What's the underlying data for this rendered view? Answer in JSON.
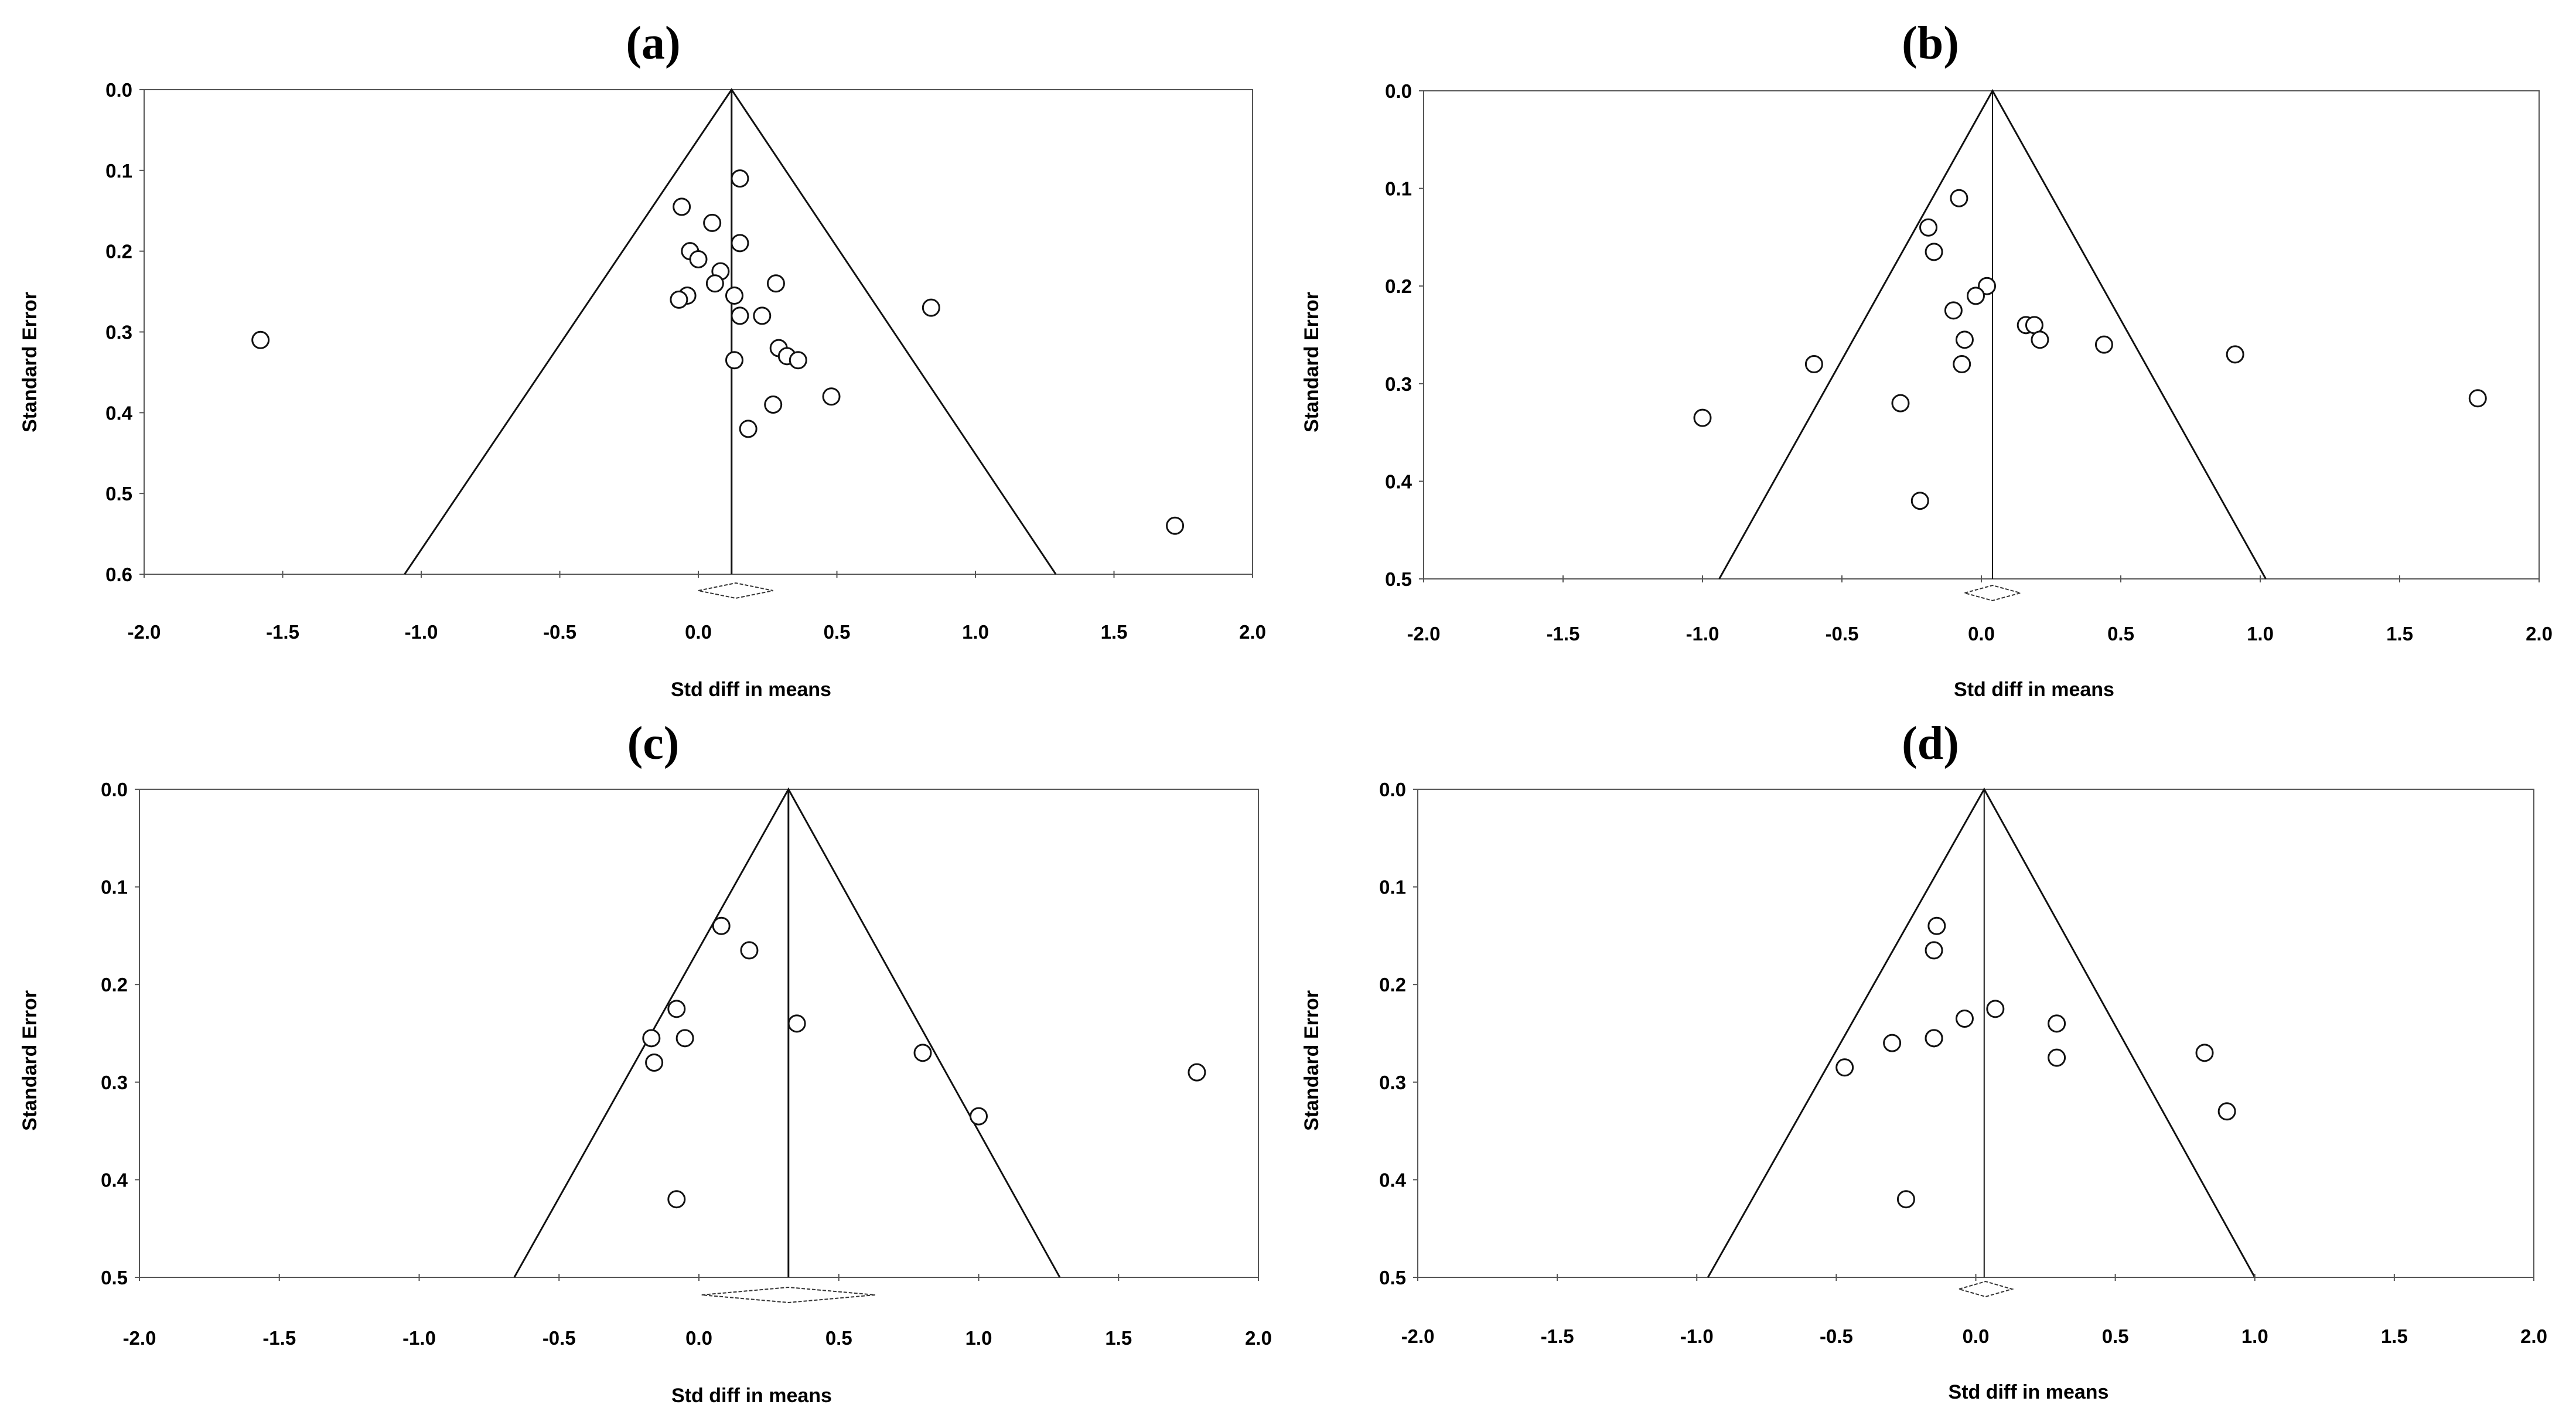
{
  "figure": {
    "panels": [
      "(a)",
      "(b)",
      "(c)",
      "(d)"
    ]
  },
  "chart_data": [
    {
      "type": "scatter",
      "subtype": "funnel plot",
      "title": "(a)",
      "xlabel": "Std diff in means",
      "ylabel": "Standard Error",
      "xlim": [
        -2.0,
        2.0
      ],
      "ylim": [
        0.0,
        0.6
      ],
      "y_inverted": true,
      "x_ticks": [
        "-2.0",
        "-1.5",
        "-1.0",
        "-0.5",
        "0.0",
        "0.5",
        "1.0",
        "1.5",
        "2.0"
      ],
      "y_ticks": [
        "0.0",
        "0.1",
        "0.2",
        "0.3",
        "0.4",
        "0.5",
        "0.6"
      ],
      "pooled_effect": 0.12,
      "funnel_base_x": [
        -1.06,
        1.29
      ],
      "summary_diamond": [
        0.0,
        0.27
      ],
      "points": [
        {
          "x": -1.58,
          "y": 0.31
        },
        {
          "x": 0.15,
          "y": 0.11
        },
        {
          "x": -0.06,
          "y": 0.145
        },
        {
          "x": 0.05,
          "y": 0.165
        },
        {
          "x": 0.15,
          "y": 0.19
        },
        {
          "x": -0.03,
          "y": 0.2
        },
        {
          "x": 0.0,
          "y": 0.21
        },
        {
          "x": 0.08,
          "y": 0.225
        },
        {
          "x": 0.06,
          "y": 0.24
        },
        {
          "x": 0.28,
          "y": 0.24
        },
        {
          "x": 0.13,
          "y": 0.255
        },
        {
          "x": -0.04,
          "y": 0.255
        },
        {
          "x": -0.07,
          "y": 0.26
        },
        {
          "x": 0.84,
          "y": 0.27
        },
        {
          "x": 0.15,
          "y": 0.28
        },
        {
          "x": 0.23,
          "y": 0.28
        },
        {
          "x": 0.29,
          "y": 0.32
        },
        {
          "x": 0.32,
          "y": 0.33
        },
        {
          "x": 0.36,
          "y": 0.335
        },
        {
          "x": 0.13,
          "y": 0.335
        },
        {
          "x": 0.48,
          "y": 0.38
        },
        {
          "x": 0.27,
          "y": 0.39
        },
        {
          "x": 0.18,
          "y": 0.42
        },
        {
          "x": 1.72,
          "y": 0.54
        }
      ]
    },
    {
      "type": "scatter",
      "subtype": "funnel plot",
      "title": "(b)",
      "xlabel": "Std diff in means",
      "ylabel": "Standard Error",
      "xlim": [
        -2.0,
        2.0
      ],
      "ylim": [
        0.0,
        0.5
      ],
      "y_inverted": true,
      "x_ticks": [
        "-2.0",
        "-1.5",
        "-1.0",
        "-0.5",
        "0.0",
        "0.5",
        "1.0",
        "1.5",
        "2.0"
      ],
      "y_ticks": [
        "0.0",
        "0.1",
        "0.2",
        "0.3",
        "0.4",
        "0.5"
      ],
      "pooled_effect": 0.04,
      "funnel_base_x": [
        -0.94,
        1.02
      ],
      "summary_diamond": [
        -0.06,
        0.14
      ],
      "points": [
        {
          "x": -0.08,
          "y": 0.11
        },
        {
          "x": -0.19,
          "y": 0.14
        },
        {
          "x": -0.17,
          "y": 0.165
        },
        {
          "x": 0.02,
          "y": 0.2
        },
        {
          "x": -0.02,
          "y": 0.21
        },
        {
          "x": -0.1,
          "y": 0.225
        },
        {
          "x": 0.16,
          "y": 0.24
        },
        {
          "x": 0.19,
          "y": 0.24
        },
        {
          "x": -0.06,
          "y": 0.255
        },
        {
          "x": 0.21,
          "y": 0.255
        },
        {
          "x": 0.44,
          "y": 0.26
        },
        {
          "x": 0.91,
          "y": 0.27
        },
        {
          "x": -0.07,
          "y": 0.28
        },
        {
          "x": -0.6,
          "y": 0.28
        },
        {
          "x": 1.78,
          "y": 0.315
        },
        {
          "x": -0.29,
          "y": 0.32
        },
        {
          "x": -1.0,
          "y": 0.335
        },
        {
          "x": -0.22,
          "y": 0.42
        }
      ]
    },
    {
      "type": "scatter",
      "subtype": "funnel plot",
      "title": "(c)",
      "xlabel": "Std diff in means",
      "ylabel": "Standard Error",
      "xlim": [
        -2.0,
        2.0
      ],
      "ylim": [
        0.0,
        0.5
      ],
      "y_inverted": true,
      "x_ticks": [
        "-2.0",
        "-1.5",
        "-1.0",
        "-0.5",
        "0.0",
        "0.5",
        "1.0",
        "1.5",
        "2.0"
      ],
      "y_ticks": [
        "0.0",
        "0.1",
        "0.2",
        "0.3",
        "0.4",
        "0.5"
      ],
      "pooled_effect": 0.32,
      "funnel_base_x": [
        -0.66,
        1.29
      ],
      "summary_diamond": [
        0.01,
        0.63
      ],
      "points": [
        {
          "x": 0.08,
          "y": 0.14
        },
        {
          "x": 0.18,
          "y": 0.165
        },
        {
          "x": -0.08,
          "y": 0.225
        },
        {
          "x": 0.35,
          "y": 0.24
        },
        {
          "x": -0.17,
          "y": 0.255
        },
        {
          "x": -0.05,
          "y": 0.255
        },
        {
          "x": 0.8,
          "y": 0.27
        },
        {
          "x": -0.16,
          "y": 0.28
        },
        {
          "x": 1.78,
          "y": 0.29
        },
        {
          "x": 1.0,
          "y": 0.335
        },
        {
          "x": -0.08,
          "y": 0.42
        }
      ]
    },
    {
      "type": "scatter",
      "subtype": "funnel plot",
      "title": "(d)",
      "xlabel": "Std diff in means",
      "ylabel": "Standard Error",
      "xlim": [
        -2.0,
        2.0
      ],
      "ylim": [
        0.0,
        0.5
      ],
      "y_inverted": true,
      "x_ticks": [
        "-2.0",
        "-1.5",
        "-1.0",
        "-0.5",
        "0.0",
        "0.5",
        "1.0",
        "1.5",
        "2.0"
      ],
      "y_ticks": [
        "0.0",
        "0.1",
        "0.2",
        "0.3",
        "0.4",
        "0.5"
      ],
      "pooled_effect": 0.03,
      "funnel_base_x": [
        -0.96,
        1.0
      ],
      "summary_diamond": [
        -0.06,
        0.13
      ],
      "points": [
        {
          "x": -0.14,
          "y": 0.14
        },
        {
          "x": -0.15,
          "y": 0.165
        },
        {
          "x": 0.07,
          "y": 0.225
        },
        {
          "x": -0.04,
          "y": 0.235
        },
        {
          "x": 0.29,
          "y": 0.24
        },
        {
          "x": -0.15,
          "y": 0.255
        },
        {
          "x": -0.15,
          "y": 0.255
        },
        {
          "x": -0.3,
          "y": 0.26
        },
        {
          "x": 0.82,
          "y": 0.27
        },
        {
          "x": 0.29,
          "y": 0.275
        },
        {
          "x": -0.47,
          "y": 0.285
        },
        {
          "x": 0.9,
          "y": 0.33
        },
        {
          "x": -0.25,
          "y": 0.42
        }
      ]
    }
  ]
}
